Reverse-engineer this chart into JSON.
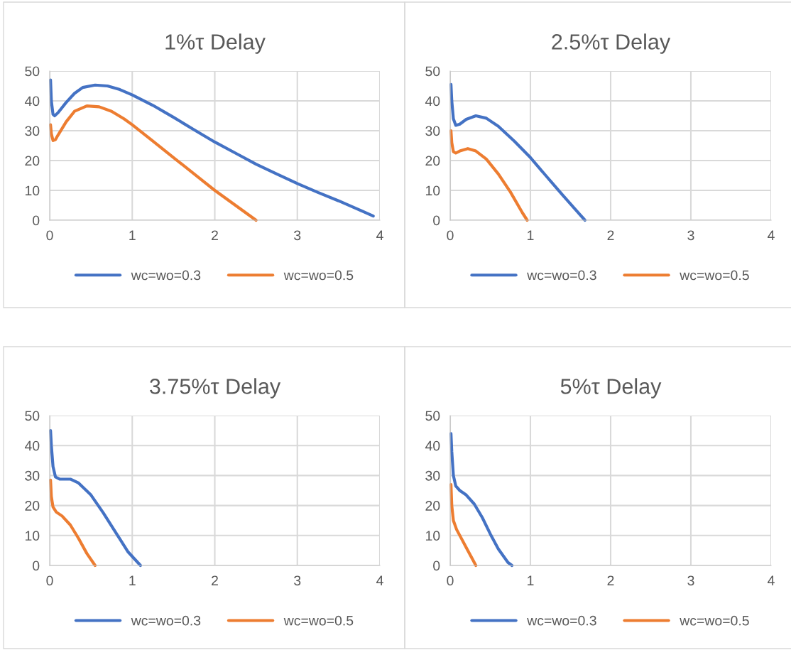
{
  "chart_data": [
    {
      "type": "line",
      "title": "1%τ Delay",
      "xlim": [
        0,
        4
      ],
      "xticks": [
        0,
        1,
        2,
        3,
        4
      ],
      "ylim": [
        0,
        50
      ],
      "yticks": [
        0,
        10,
        20,
        30,
        40,
        50
      ],
      "grid": true,
      "legend": "bottom",
      "series": [
        {
          "name": "wc=wo=0.3",
          "color": "#4472c4",
          "x": [
            0.01,
            0.02,
            0.04,
            0.06,
            0.1,
            0.2,
            0.3,
            0.4,
            0.55,
            0.7,
            0.85,
            1.0,
            1.25,
            1.5,
            1.75,
            2.0,
            2.25,
            2.5,
            2.75,
            3.0,
            3.25,
            3.5,
            3.75,
            3.92
          ],
          "values": [
            47,
            40,
            35.5,
            35,
            36,
            39.5,
            42.5,
            44.5,
            45.3,
            45,
            43.8,
            42,
            38.5,
            34.5,
            30.3,
            26.2,
            22.5,
            18.8,
            15.5,
            12.3,
            9.3,
            6.5,
            3.5,
            1.4
          ]
        },
        {
          "name": "wc=wo=0.5",
          "color": "#ed7d31",
          "x": [
            0.01,
            0.02,
            0.04,
            0.07,
            0.1,
            0.2,
            0.3,
            0.45,
            0.6,
            0.75,
            0.9,
            1.0,
            1.25,
            1.5,
            1.75,
            2.0,
            2.25,
            2.5
          ],
          "values": [
            32,
            29,
            26.7,
            27,
            28.5,
            33,
            36.5,
            38.3,
            38,
            36.5,
            34,
            32,
            26.5,
            21,
            15.5,
            10,
            5,
            0
          ]
        }
      ]
    },
    {
      "type": "line",
      "title": "2.5%τ Delay",
      "xlim": [
        0,
        4
      ],
      "xticks": [
        0,
        1,
        2,
        3,
        4
      ],
      "ylim": [
        0,
        50
      ],
      "yticks": [
        0,
        10,
        20,
        30,
        40,
        50
      ],
      "grid": true,
      "legend": "bottom",
      "series": [
        {
          "name": "wc=wo=0.3",
          "color": "#4472c4",
          "x": [
            0.01,
            0.02,
            0.04,
            0.07,
            0.12,
            0.2,
            0.32,
            0.45,
            0.6,
            0.8,
            1.0,
            1.2,
            1.4,
            1.6,
            1.68
          ],
          "values": [
            45.5,
            40,
            34,
            31.8,
            32.2,
            33.8,
            35,
            34.2,
            31.5,
            26.5,
            21,
            14.7,
            8.5,
            2.4,
            0
          ]
        },
        {
          "name": "wc=wo=0.5",
          "color": "#ed7d31",
          "x": [
            0.01,
            0.02,
            0.04,
            0.07,
            0.12,
            0.22,
            0.32,
            0.45,
            0.6,
            0.75,
            0.9,
            0.96
          ],
          "values": [
            30,
            26,
            23,
            22.5,
            23.2,
            24,
            23.2,
            20.5,
            15.5,
            9.5,
            2.5,
            0
          ]
        }
      ]
    },
    {
      "type": "line",
      "title": "3.75%τ Delay",
      "xlim": [
        0,
        4
      ],
      "xticks": [
        0,
        1,
        2,
        3,
        4
      ],
      "ylim": [
        0,
        50
      ],
      "yticks": [
        0,
        10,
        20,
        30,
        40,
        50
      ],
      "grid": true,
      "legend": "bottom",
      "series": [
        {
          "name": "wc=wo=0.3",
          "color": "#4472c4",
          "x": [
            0.01,
            0.02,
            0.04,
            0.07,
            0.12,
            0.25,
            0.35,
            0.5,
            0.65,
            0.8,
            0.95,
            1.1
          ],
          "values": [
            45,
            40,
            33,
            29.5,
            28.8,
            28.8,
            27.5,
            23.5,
            17.5,
            11,
            4.5,
            0
          ]
        },
        {
          "name": "wc=wo=0.5",
          "color": "#ed7d31",
          "x": [
            0.01,
            0.02,
            0.04,
            0.08,
            0.15,
            0.25,
            0.35,
            0.45,
            0.55
          ],
          "values": [
            28.5,
            23,
            19.5,
            17.8,
            16.5,
            13.5,
            9,
            4,
            0
          ]
        }
      ]
    },
    {
      "type": "line",
      "title": "5%τ Delay",
      "xlim": [
        0,
        4
      ],
      "xticks": [
        0,
        1,
        2,
        3,
        4
      ],
      "ylim": [
        0,
        50
      ],
      "yticks": [
        0,
        10,
        20,
        30,
        40,
        50
      ],
      "grid": true,
      "legend": "bottom",
      "series": [
        {
          "name": "wc=wo=0.3",
          "color": "#4472c4",
          "x": [
            0.01,
            0.02,
            0.04,
            0.07,
            0.12,
            0.2,
            0.3,
            0.4,
            0.5,
            0.6,
            0.72,
            0.77
          ],
          "values": [
            44,
            38,
            30,
            26.5,
            25,
            23.5,
            20.5,
            16,
            10.5,
            5.5,
            1,
            0
          ]
        },
        {
          "name": "wc=wo=0.5",
          "color": "#ed7d31",
          "x": [
            0.01,
            0.02,
            0.04,
            0.08,
            0.15,
            0.22,
            0.28,
            0.32
          ],
          "values": [
            27,
            20,
            15,
            12,
            8.5,
            5,
            2,
            0
          ]
        }
      ]
    }
  ]
}
